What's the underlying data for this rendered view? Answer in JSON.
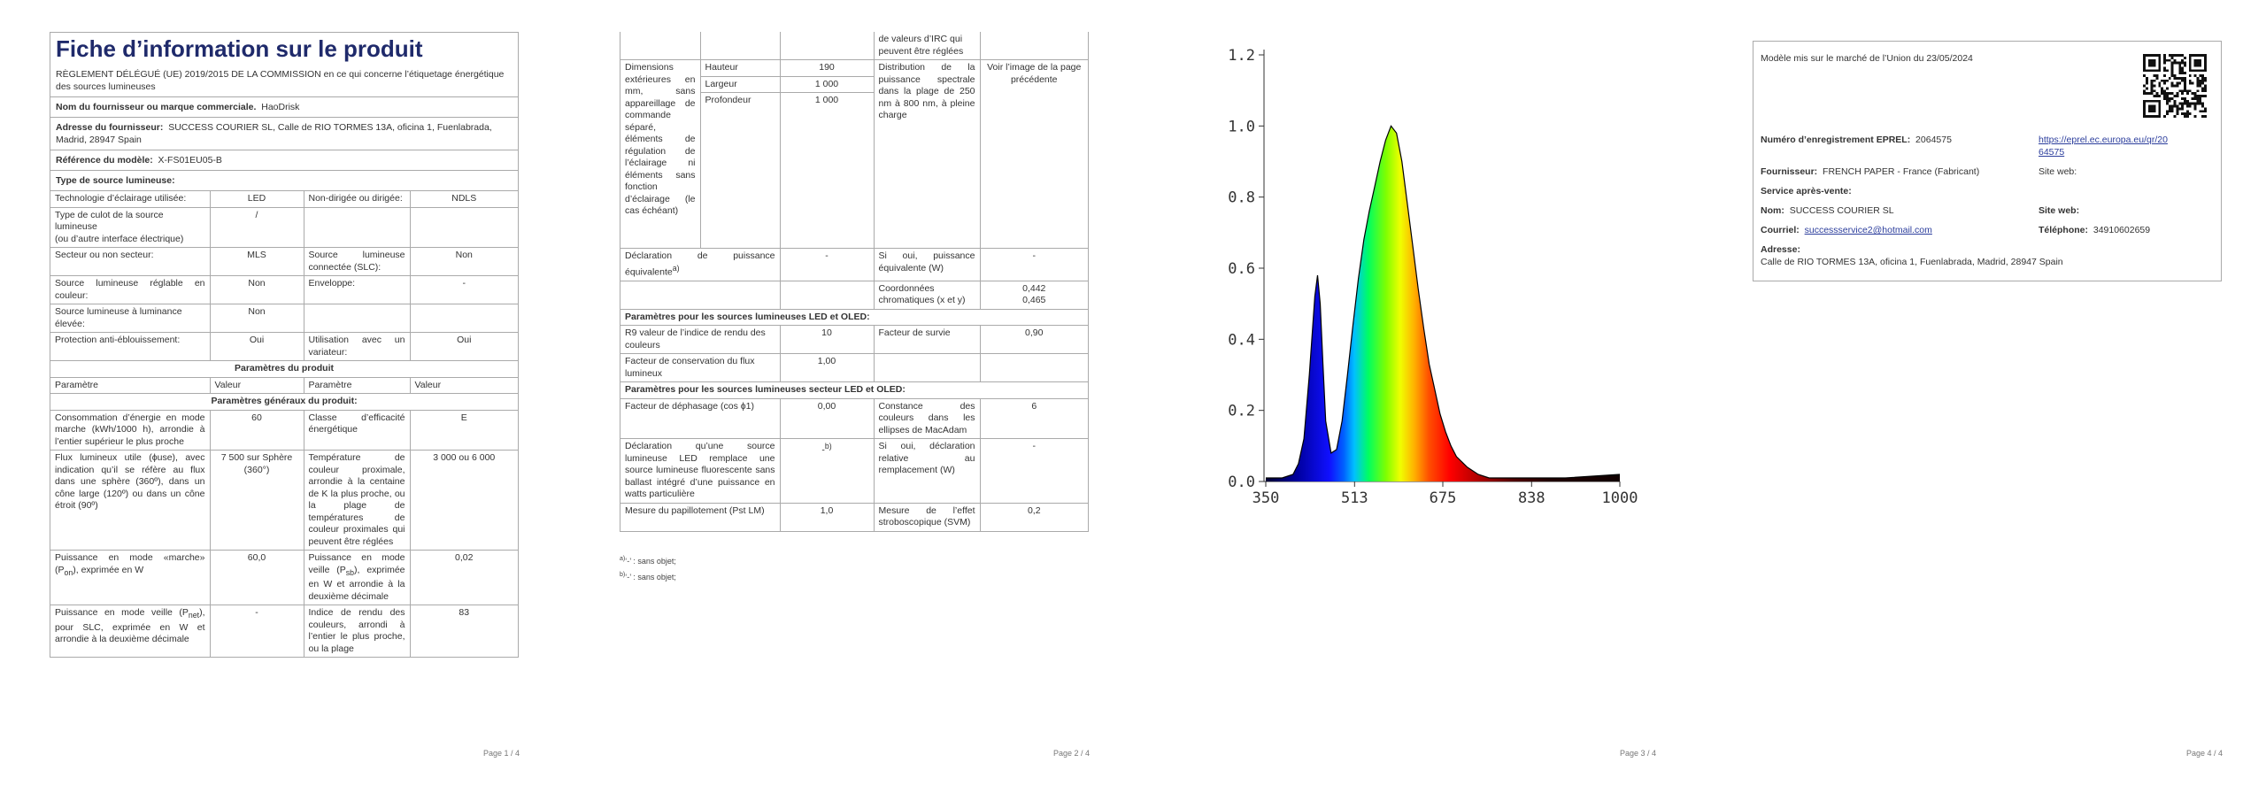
{
  "page1": {
    "title": "Fiche d’information sur le produit",
    "subtitle": "RÈGLEMENT DÉLÉGUÉ (UE) 2019/2015 DE LA COMMISSION en ce qui concerne l’étiquetage énergétique des sources lumineuses",
    "supplier_label": "Nom du fournisseur ou marque commerciale.",
    "supplier_value": "HaoDrisk",
    "address_label": "Adresse du fournisseur:",
    "address_value": "SUCCESS COURIER SL, Calle de RIO TORMES 13A, oficina 1, Fuenlabrada, Madrid, 28947 Spain",
    "model_label": "Référence du modèle:",
    "model_value": "X-FS01EU05-B",
    "type_header": "Type de source lumineuse:",
    "tech_label": "Technologie d’éclairage utilisée:",
    "tech_value": "LED",
    "directed_label": "Non-dirigée ou dirigée:",
    "directed_value": "NDLS",
    "cap_label_1": "Type de culot de la source lumineuse",
    "cap_label_2": "(ou d’autre interface électrique)",
    "cap_value": "/",
    "mains_label": "Secteur ou non secteur:",
    "mains_value": "MLS",
    "connected_label": "Source lumineuse connectée (SLC):",
    "connected_value": "Non",
    "colour_tunable_label": "Source lumineuse réglable en couleur:",
    "colour_tunable_value": "Non",
    "envelope_label": "Enveloppe:",
    "envelope_value": "-",
    "high_lum_label": "Source lumineuse à luminance élevée:",
    "high_lum_value": "Non",
    "glare_label": "Protection anti-éblouissement:",
    "glare_value": "Oui",
    "dimmable_label": "Utilisation avec un variateur:",
    "dimmable_value": "Oui",
    "params_header": "Paramètres du produit",
    "col_param": "Paramètre",
    "col_value": "Valeur",
    "general_header": "Paramètres généraux du produit:",
    "energy_label": "Consommation d’énergie en mode marche (kWh/1000 h), arrondie à l’entier supérieur le plus proche",
    "energy_value": "60",
    "class_label": "Classe d’efficacité énergétique",
    "class_value": "E",
    "flux_label": "Flux lumineux utile (ϕuse), avec indication qu’il se réfère au flux dans une sphère (360º), dans un cône large (120º) ou dans un cône étroit (90º)",
    "flux_value": "7 500 sur Sphère (360°)",
    "cct_label": "Température de couleur proximale, arrondie à la centaine de K la plus proche, ou la plage de températures de couleur proximales qui peuvent être réglées",
    "cct_value": "3 000 ou 6 000",
    "on_power_label_a": "Puissance en mode «marche» (P",
    "on_power_sub": "on",
    "on_power_label_b": "), exprimée en W",
    "on_power_value": "60,0",
    "sb_label_a": "Puissance en mode veille (P",
    "sb_sub": "sb",
    "sb_label_b": "), exprimée en W et arrondie à la deuxième décimale",
    "sb_value": "0,02",
    "net_label_a": "Puissance en mode veille (P",
    "net_sub": "net",
    "net_label_b": "), pour SLC, exprimée en W et arrondie à la deuxième décimale",
    "net_value": "-",
    "cri_label": "Indice de rendu des couleurs, arrondi à l’entier le plus proche, ou la plage",
    "cri_value": "83",
    "page_num": "Page 1 / 4"
  },
  "page2": {
    "cri_cont": "de valeurs d’IRC qui peuvent être réglées",
    "dim_label": "Dimensions extérieures en mm, sans appareillage de commande séparé, éléments de régulation de l’éclairage ni éléments sans fonction d’éclairage (le cas échéant)",
    "height_label": "Hauteur",
    "height_value": "190",
    "width_label": "Largeur",
    "width_value": "1 000",
    "depth_label": "Profondeur",
    "depth_value": "1 000",
    "spd_label": "Distribution de la puissance spectrale dans la plage de 250 nm à 800 nm, à pleine charge",
    "spd_value": "Voir l’image de la page précédente",
    "equiv_label": "Déclaration de puissance équivalente",
    "equiv_sup": "a)",
    "equiv_value": "-",
    "equiv_w_label": "Si oui, puissance équivalente (W)",
    "equiv_w_value": "-",
    "chroma_label": "Coordonnées chromatiques (x et y)",
    "chroma_x": "0,442",
    "chroma_y": "0,465",
    "led_header": "Paramètres pour les sources lumineuses LED et OLED:",
    "r9_label": "R9 valeur de l’indice de rendu des couleurs",
    "r9_value": "10",
    "survival_label": "Facteur de survie",
    "survival_value": "0,90",
    "maint_label": "Facteur de conservation du flux lumineux",
    "maint_value": "1,00",
    "mains_header": "Paramètres pour les sources lumineuses secteur LED et OLED:",
    "pf_label": "Facteur de déphasage (cos ϕ1)",
    "pf_value": "0,00",
    "macadam_label": "Constance des couleurs dans les ellipses de MacAdam",
    "macadam_value": "6",
    "replace_label": "Déclaration qu’une source lumineuse LED remplace une source lumineuse fluorescente sans ballast intégré d’une puissance en watts particulière",
    "replace_value": "-",
    "replace_sup": "b)",
    "replace_w_label": "Si oui, déclaration relative au remplacement (W)",
    "replace_w_value": "-",
    "flicker_label": "Mesure du papillotement (Pst LM)",
    "flicker_value": "1,0",
    "strobo_label": "Mesure de l’effet stroboscopique (SVM)",
    "strobo_value": "0,2",
    "foot_a_sup": "a)",
    "foot_a_text": "‘-’ : sans objet;",
    "foot_b_sup": "b)",
    "foot_b_text": "‘-’ : sans objet;",
    "page_num": "Page 2 / 4"
  },
  "chart_data": {
    "type": "area",
    "title": "",
    "xlabel": "",
    "ylabel": "",
    "xlim": [
      350,
      1000
    ],
    "ylim": [
      0,
      1.2
    ],
    "x_ticks": [
      350,
      513,
      675,
      838,
      1000
    ],
    "x_tick_labels": [
      "350",
      "513",
      "675",
      "838",
      "1000"
    ],
    "y_ticks": [
      0,
      0.2,
      0.4,
      0.6,
      0.8,
      1.0,
      1.2
    ],
    "y_tick_labels": [
      "0.0",
      "0.2",
      "0.4",
      "0.6",
      "0.8",
      "1.0",
      "1.2"
    ],
    "grid": false,
    "fill": "visible-spectrum colours",
    "series": [
      {
        "x": [
          350,
          380,
          400,
          410,
          420,
          430,
          440,
          445,
          450,
          455,
          460,
          470,
          480,
          490,
          500,
          510,
          520,
          530,
          540,
          550,
          560,
          570,
          580,
          590,
          600,
          610,
          620,
          630,
          640,
          650,
          660,
          670,
          680,
          690,
          700,
          720,
          740,
          760,
          780,
          800,
          850,
          900,
          1000
        ],
        "y": [
          0.01,
          0.01,
          0.02,
          0.05,
          0.12,
          0.3,
          0.52,
          0.58,
          0.5,
          0.33,
          0.17,
          0.08,
          0.09,
          0.17,
          0.3,
          0.44,
          0.57,
          0.68,
          0.76,
          0.83,
          0.9,
          0.96,
          1.0,
          0.98,
          0.9,
          0.78,
          0.66,
          0.54,
          0.43,
          0.33,
          0.26,
          0.19,
          0.14,
          0.1,
          0.07,
          0.04,
          0.02,
          0.01,
          0.01,
          0.01,
          0.01,
          0.01,
          0.02
        ]
      }
    ]
  },
  "page3": {
    "page_num": "Page 3 / 4"
  },
  "page4": {
    "market_text": "Modèle mis sur le marché de l’Union du 23/05/2024",
    "eprel_label": "Numéro d’enregistrement EPREL:",
    "eprel_value": "2064575",
    "eprel_link_1": "https://eprel.ec.europa.eu/qr/20",
    "eprel_link_2": "64575",
    "supplier_label": "Fournisseur:",
    "supplier_value": "FRENCH PAPER - France (Fabricant)",
    "website_label": "Site web:",
    "service_label": "Service après-vente:",
    "name_label": "Nom:",
    "name_value": "SUCCESS COURIER SL",
    "website2_label": "Site web:",
    "email_label": "Courriel:",
    "email_value": "successservice2@hotmail.com",
    "phone_label": "Téléphone:",
    "phone_value": "34910602659",
    "address_label": "Adresse:",
    "address_value": "Calle de RIO TORMES 13A, oficina 1, Fuenlabrada, Madrid, 28947 Spain",
    "page_num": "Page 4 / 4"
  }
}
